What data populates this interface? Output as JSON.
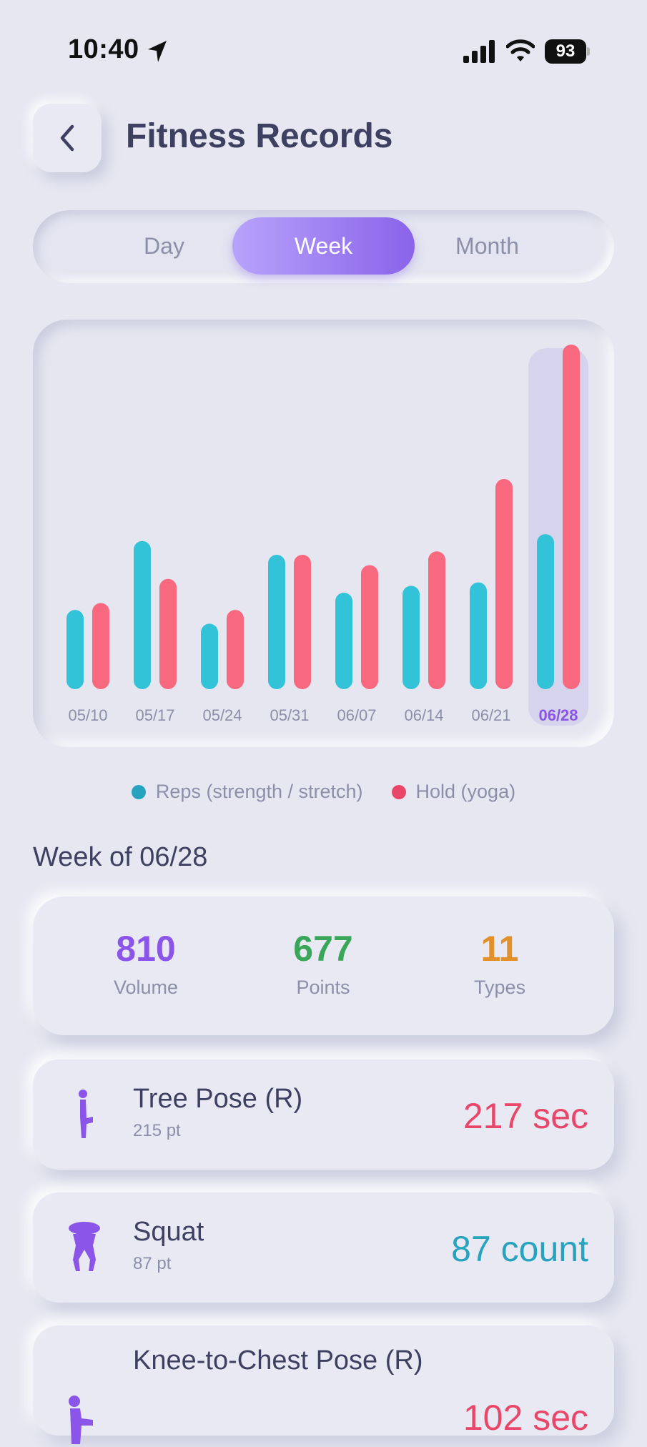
{
  "status_bar": {
    "time": "10:40",
    "battery": "93"
  },
  "header": {
    "title": "Fitness Records"
  },
  "tabs": [
    {
      "label": "Day",
      "active": false
    },
    {
      "label": "Week",
      "active": true
    },
    {
      "label": "Month",
      "active": false
    }
  ],
  "chart_data": {
    "type": "bar",
    "categories": [
      "05/10",
      "05/17",
      "05/24",
      "05/31",
      "06/07",
      "06/14",
      "06/21",
      "06/28"
    ],
    "series": [
      {
        "name": "Reps (strength / stretch)",
        "color": "#33c3d8",
        "values": [
          23,
          43,
          19,
          39,
          28,
          30,
          31,
          45
        ]
      },
      {
        "name": "Hold (yoga)",
        "color": "#f8687e",
        "values": [
          25,
          32,
          23,
          39,
          36,
          40,
          61,
          100
        ]
      }
    ],
    "selected_category": "06/28",
    "grid": false
  },
  "legend": {
    "reps_label": "Reps (strength / stretch)",
    "hold_label": "Hold (yoga)"
  },
  "week_summary": {
    "title": "Week of 06/28",
    "stats": [
      {
        "value": "810",
        "label": "Volume",
        "color": "#8a55e8"
      },
      {
        "value": "677",
        "label": "Points",
        "color": "#3aa65a"
      },
      {
        "value": "11",
        "label": "Types",
        "color": "#e1902a"
      }
    ]
  },
  "exercises": [
    {
      "name": "Tree Pose (R)",
      "points": "215 pt",
      "value": "217 sec",
      "value_color": "#e8476a",
      "icon": "tree-pose-icon"
    },
    {
      "name": "Squat",
      "points": "87 pt",
      "value": "87 count",
      "value_color": "#27a3be",
      "icon": "squat-icon"
    },
    {
      "name": "Knee-to-Chest Pose (R)",
      "points": "",
      "value": "102 sec",
      "value_color": "#e8476a",
      "icon": "knee-to-chest-icon"
    }
  ]
}
